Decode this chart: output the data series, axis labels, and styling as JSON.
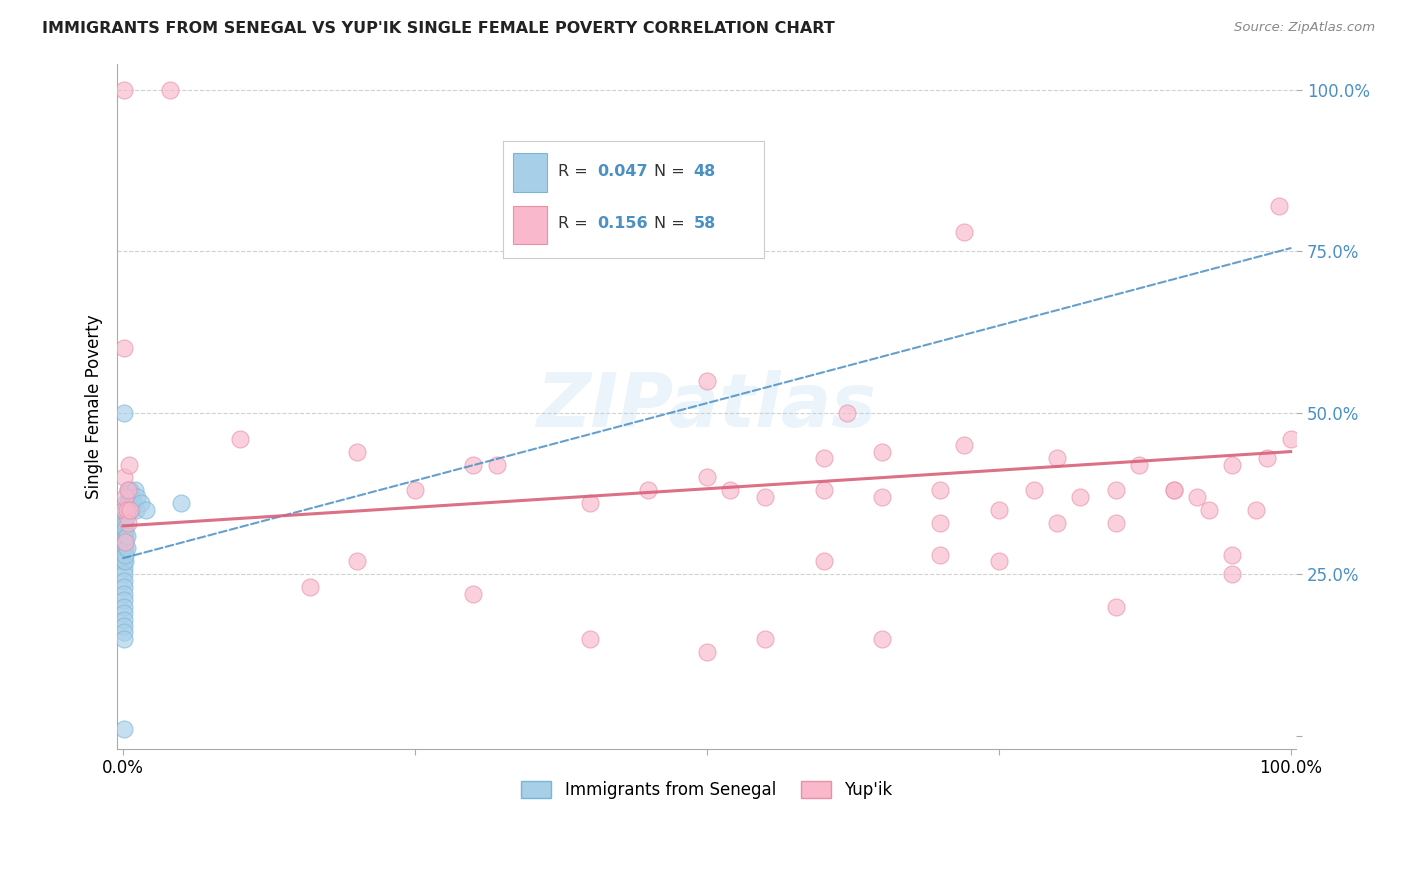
{
  "title": "IMMIGRANTS FROM SENEGAL VS YUP'IK SINGLE FEMALE POVERTY CORRELATION CHART",
  "source": "Source: ZipAtlas.com",
  "ylabel": "Single Female Poverty",
  "watermark": "ZIPatlas",
  "blue_label": "Immigrants from Senegal",
  "pink_label": "Yup'ik",
  "blue_R": "0.047",
  "blue_N": "48",
  "pink_R": "0.156",
  "pink_N": "58",
  "blue_scatter_color": "#a8cfe8",
  "blue_edge_color": "#7ab5d8",
  "blue_line_color": "#4a90c4",
  "pink_scatter_color": "#f9b8cc",
  "pink_edge_color": "#e890a8",
  "pink_line_color": "#d9607a",
  "blue_intercept": 0.275,
  "blue_slope": 0.48,
  "pink_intercept": 0.325,
  "pink_slope": 0.115,
  "blue_x": [
    0.001,
    0.001,
    0.001,
    0.001,
    0.001,
    0.001,
    0.001,
    0.001,
    0.001,
    0.001,
    0.001,
    0.001,
    0.001,
    0.001,
    0.001,
    0.001,
    0.001,
    0.001,
    0.001,
    0.001,
    0.0015,
    0.0015,
    0.0015,
    0.0015,
    0.0015,
    0.002,
    0.002,
    0.002,
    0.002,
    0.003,
    0.003,
    0.003,
    0.004,
    0.004,
    0.005,
    0.005,
    0.006,
    0.007,
    0.008,
    0.009,
    0.01,
    0.011,
    0.012,
    0.015,
    0.02,
    0.05,
    0.001,
    0.001
  ],
  "blue_y": [
    0.28,
    0.3,
    0.31,
    0.32,
    0.33,
    0.34,
    0.35,
    0.26,
    0.27,
    0.25,
    0.24,
    0.23,
    0.22,
    0.21,
    0.2,
    0.19,
    0.18,
    0.17,
    0.16,
    0.15,
    0.29,
    0.31,
    0.33,
    0.27,
    0.35,
    0.3,
    0.32,
    0.28,
    0.36,
    0.29,
    0.31,
    0.34,
    0.36,
    0.38,
    0.37,
    0.35,
    0.38,
    0.35,
    0.37,
    0.36,
    0.38,
    0.35,
    0.37,
    0.36,
    0.35,
    0.36,
    0.5,
    0.01
  ],
  "pink_x": [
    0.001,
    0.001,
    0.001,
    0.002,
    0.002,
    0.003,
    0.004,
    0.004,
    0.005,
    0.006,
    0.1,
    0.16,
    0.2,
    0.25,
    0.3,
    0.32,
    0.4,
    0.45,
    0.5,
    0.5,
    0.52,
    0.55,
    0.6,
    0.6,
    0.62,
    0.65,
    0.65,
    0.7,
    0.7,
    0.72,
    0.75,
    0.78,
    0.8,
    0.82,
    0.85,
    0.85,
    0.87,
    0.9,
    0.92,
    0.93,
    0.95,
    0.95,
    0.97,
    0.98,
    1.0,
    0.6,
    0.7,
    0.8,
    0.85,
    0.9,
    0.95,
    0.5,
    0.4,
    0.3,
    0.2,
    0.55,
    0.65,
    0.75
  ],
  "pink_y": [
    0.6,
    0.4,
    0.35,
    0.37,
    0.3,
    0.35,
    0.38,
    0.33,
    0.42,
    0.35,
    0.46,
    0.23,
    0.44,
    0.38,
    0.42,
    0.42,
    0.36,
    0.38,
    0.55,
    0.4,
    0.38,
    0.37,
    0.43,
    0.38,
    0.5,
    0.44,
    0.37,
    0.38,
    0.33,
    0.45,
    0.35,
    0.38,
    0.43,
    0.37,
    0.38,
    0.33,
    0.42,
    0.38,
    0.37,
    0.35,
    0.42,
    0.28,
    0.35,
    0.43,
    0.46,
    0.27,
    0.28,
    0.33,
    0.2,
    0.38,
    0.25,
    0.13,
    0.15,
    0.22,
    0.27,
    0.15,
    0.15,
    0.27
  ]
}
